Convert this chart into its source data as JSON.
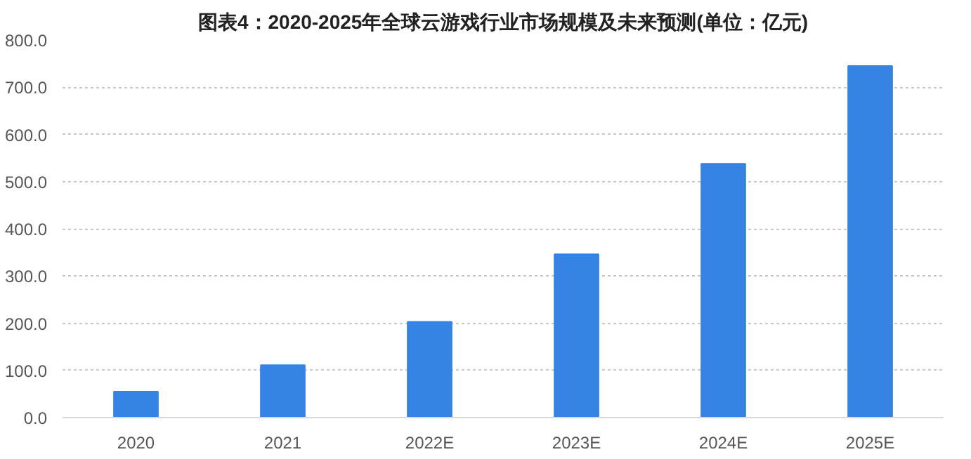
{
  "chart_data": {
    "type": "bar",
    "title": "图表4：2020-2025年全球云游戏行业市场规模及未来预测(单位：亿元)",
    "categories": [
      "2020",
      "2021",
      "2022E",
      "2023E",
      "2024E",
      "2025E"
    ],
    "values": [
      55,
      111,
      203,
      346,
      538,
      745
    ],
    "color": "#3584e4",
    "ylim": [
      0,
      800
    ],
    "yticks": [
      {
        "value": 0,
        "label": "0.0"
      },
      {
        "value": 100,
        "label": "100.0"
      },
      {
        "value": 200,
        "label": "200.0"
      },
      {
        "value": 300,
        "label": "300.0"
      },
      {
        "value": 400,
        "label": "400.0"
      },
      {
        "value": 500,
        "label": "500.0"
      },
      {
        "value": 600,
        "label": "600.0"
      },
      {
        "value": 700,
        "label": "700.0"
      },
      {
        "value": 800,
        "label": "800.0"
      }
    ],
    "grid": "y"
  }
}
